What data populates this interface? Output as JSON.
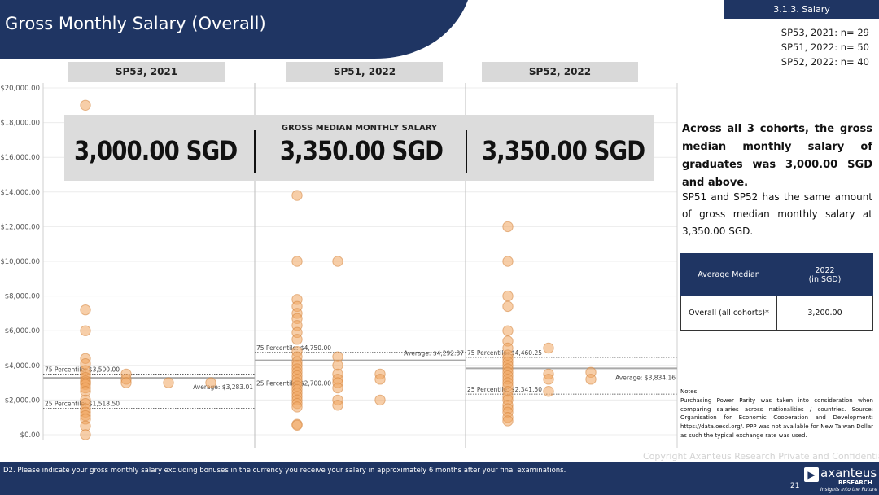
{
  "header": {
    "title": "Gross Monthly Salary (Overall)",
    "section_tag": "3.1.3. Salary",
    "sample_sizes": [
      "SP53, 2021: n= 29",
      "SP51, 2022: n= 50",
      "SP52, 2022: n= 40"
    ]
  },
  "overlay": {
    "title": "GROSS MEDIAN MONTHLY SALARY",
    "values": [
      "3,000.00 SGD",
      "3,350.00 SGD",
      "3,350.00 SGD"
    ]
  },
  "insights": {
    "primary": "Across all 3 cohorts, the gross median monthly salary of graduates was 3,000.00 SGD and above.",
    "secondary": "SP51 and SP52 has the same amount of gross median monthly salary at 3,350.00 SGD."
  },
  "summary_table": {
    "col1_header": "Average Median",
    "col2_header_line1": "2022",
    "col2_header_line2": "(in SGD)",
    "row_label": "Overall (all cohorts)*",
    "row_value": "3,200.00"
  },
  "notes": {
    "heading": "Notes:",
    "body": "Purchasing Power Parity was taken into consideration when comparing salaries across nationalities / countries. Source: Organisation for Economic Cooperation and Development: https://data.oecd.org/. PPP was not available for New Taiwan Dollar as such the typical exchange rate was used."
  },
  "footer": {
    "question": "D2. Please indicate your gross monthly salary excluding bonuses in the currency you receive your salary in approximately 6 months after your final examinations.",
    "page_number": "21",
    "copyright": "Copyright Axanteus Research Private and Confidential",
    "logo_name": "axanteus",
    "logo_sub": "RESEARCH",
    "logo_tagline": "Insights Into the Future"
  },
  "colors": {
    "navy": "#1f3563",
    "dot_fill": "#f0a560",
    "dot_stroke": "#d4833c"
  },
  "chart_data": {
    "type": "scatter",
    "title": "",
    "xlabel": "",
    "ylabel": "",
    "ylim": [
      0,
      20000
    ],
    "yticks": [
      0,
      2000,
      4000,
      6000,
      8000,
      10000,
      12000,
      14000,
      16000,
      18000,
      20000
    ],
    "ytick_labels": [
      "$0.00",
      "$2,000.00",
      "$4,000.00",
      "$6,000.00",
      "$8,000.00",
      "$10,000.00",
      "$12,000.00",
      "$14,000.00",
      "$16,000.00",
      "$18,000.00",
      "$20,000.00"
    ],
    "panels": [
      {
        "name": "SP53, 2021",
        "p75": 3500,
        "p75_label": "75 Percentile: $3,500.00",
        "p25": 1518.5,
        "p25_label": "25 Percentile: $1,518.50",
        "average": 3283.01,
        "average_label": "Average: $3,283.01",
        "points": [
          [
            1,
            19000
          ],
          [
            1,
            7200
          ],
          [
            1,
            6000
          ],
          [
            1,
            4400
          ],
          [
            1,
            4100
          ],
          [
            1,
            3700
          ],
          [
            1,
            3500
          ],
          [
            1,
            3300
          ],
          [
            1,
            3100
          ],
          [
            1,
            3000
          ],
          [
            1,
            2900
          ],
          [
            1,
            2700
          ],
          [
            1,
            2500
          ],
          [
            1,
            2000
          ],
          [
            1,
            1800
          ],
          [
            1,
            1500
          ],
          [
            1,
            1300
          ],
          [
            1,
            1100
          ],
          [
            1,
            900
          ],
          [
            1,
            500
          ],
          [
            1,
            0
          ],
          [
            2,
            3500
          ],
          [
            2,
            3200
          ],
          [
            2,
            3000
          ],
          [
            3,
            3000
          ],
          [
            4,
            3000
          ]
        ]
      },
      {
        "name": "SP51, 2022",
        "p75": 4750,
        "p75_label": "75 Percentile: $4,750.00",
        "p25": 2700,
        "p25_label": "25 Percentile: $2,700.00",
        "average": 4292.37,
        "average_label": "Average: $4,292.37",
        "points": [
          [
            1,
            13800
          ],
          [
            1,
            10000
          ],
          [
            1,
            7800
          ],
          [
            1,
            7400
          ],
          [
            1,
            7000
          ],
          [
            1,
            6700
          ],
          [
            1,
            6300
          ],
          [
            1,
            5900
          ],
          [
            1,
            5500
          ],
          [
            1,
            4800
          ],
          [
            1,
            4500
          ],
          [
            1,
            4200
          ],
          [
            1,
            4000
          ],
          [
            1,
            3800
          ],
          [
            1,
            3600
          ],
          [
            1,
            3400
          ],
          [
            1,
            3200
          ],
          [
            1,
            3000
          ],
          [
            1,
            2800
          ],
          [
            1,
            2600
          ],
          [
            1,
            2400
          ],
          [
            1,
            2200
          ],
          [
            1,
            2000
          ],
          [
            1,
            1800
          ],
          [
            1,
            1600
          ],
          [
            1,
            600
          ],
          [
            1,
            550
          ],
          [
            2,
            10000
          ],
          [
            2,
            4500
          ],
          [
            2,
            4000
          ],
          [
            2,
            3500
          ],
          [
            2,
            3200
          ],
          [
            2,
            3000
          ],
          [
            2,
            2700
          ],
          [
            2,
            2000
          ],
          [
            2,
            1700
          ],
          [
            3,
            3500
          ],
          [
            3,
            3200
          ],
          [
            3,
            2000
          ]
        ]
      },
      {
        "name": "SP52, 2022",
        "p75": 4460.25,
        "p75_label": "75 Percentile: $4,460.25",
        "p25": 2341.5,
        "p25_label": "25 Percentile: $2,341.50",
        "average": 3834.16,
        "average_label": "Average: $3,834.16",
        "points": [
          [
            1,
            12000
          ],
          [
            1,
            10000
          ],
          [
            1,
            8000
          ],
          [
            1,
            7400
          ],
          [
            1,
            6000
          ],
          [
            1,
            5400
          ],
          [
            1,
            5000
          ],
          [
            1,
            4600
          ],
          [
            1,
            4400
          ],
          [
            1,
            4200
          ],
          [
            1,
            4000
          ],
          [
            1,
            3800
          ],
          [
            1,
            3600
          ],
          [
            1,
            3400
          ],
          [
            1,
            3200
          ],
          [
            1,
            3000
          ],
          [
            1,
            2800
          ],
          [
            1,
            2500
          ],
          [
            1,
            2200
          ],
          [
            1,
            2000
          ],
          [
            1,
            1700
          ],
          [
            1,
            1500
          ],
          [
            1,
            1300
          ],
          [
            1,
            1000
          ],
          [
            1,
            800
          ],
          [
            2,
            5000
          ],
          [
            2,
            3500
          ],
          [
            2,
            3200
          ],
          [
            2,
            2500
          ],
          [
            3,
            3600
          ],
          [
            3,
            3200
          ]
        ]
      }
    ]
  }
}
